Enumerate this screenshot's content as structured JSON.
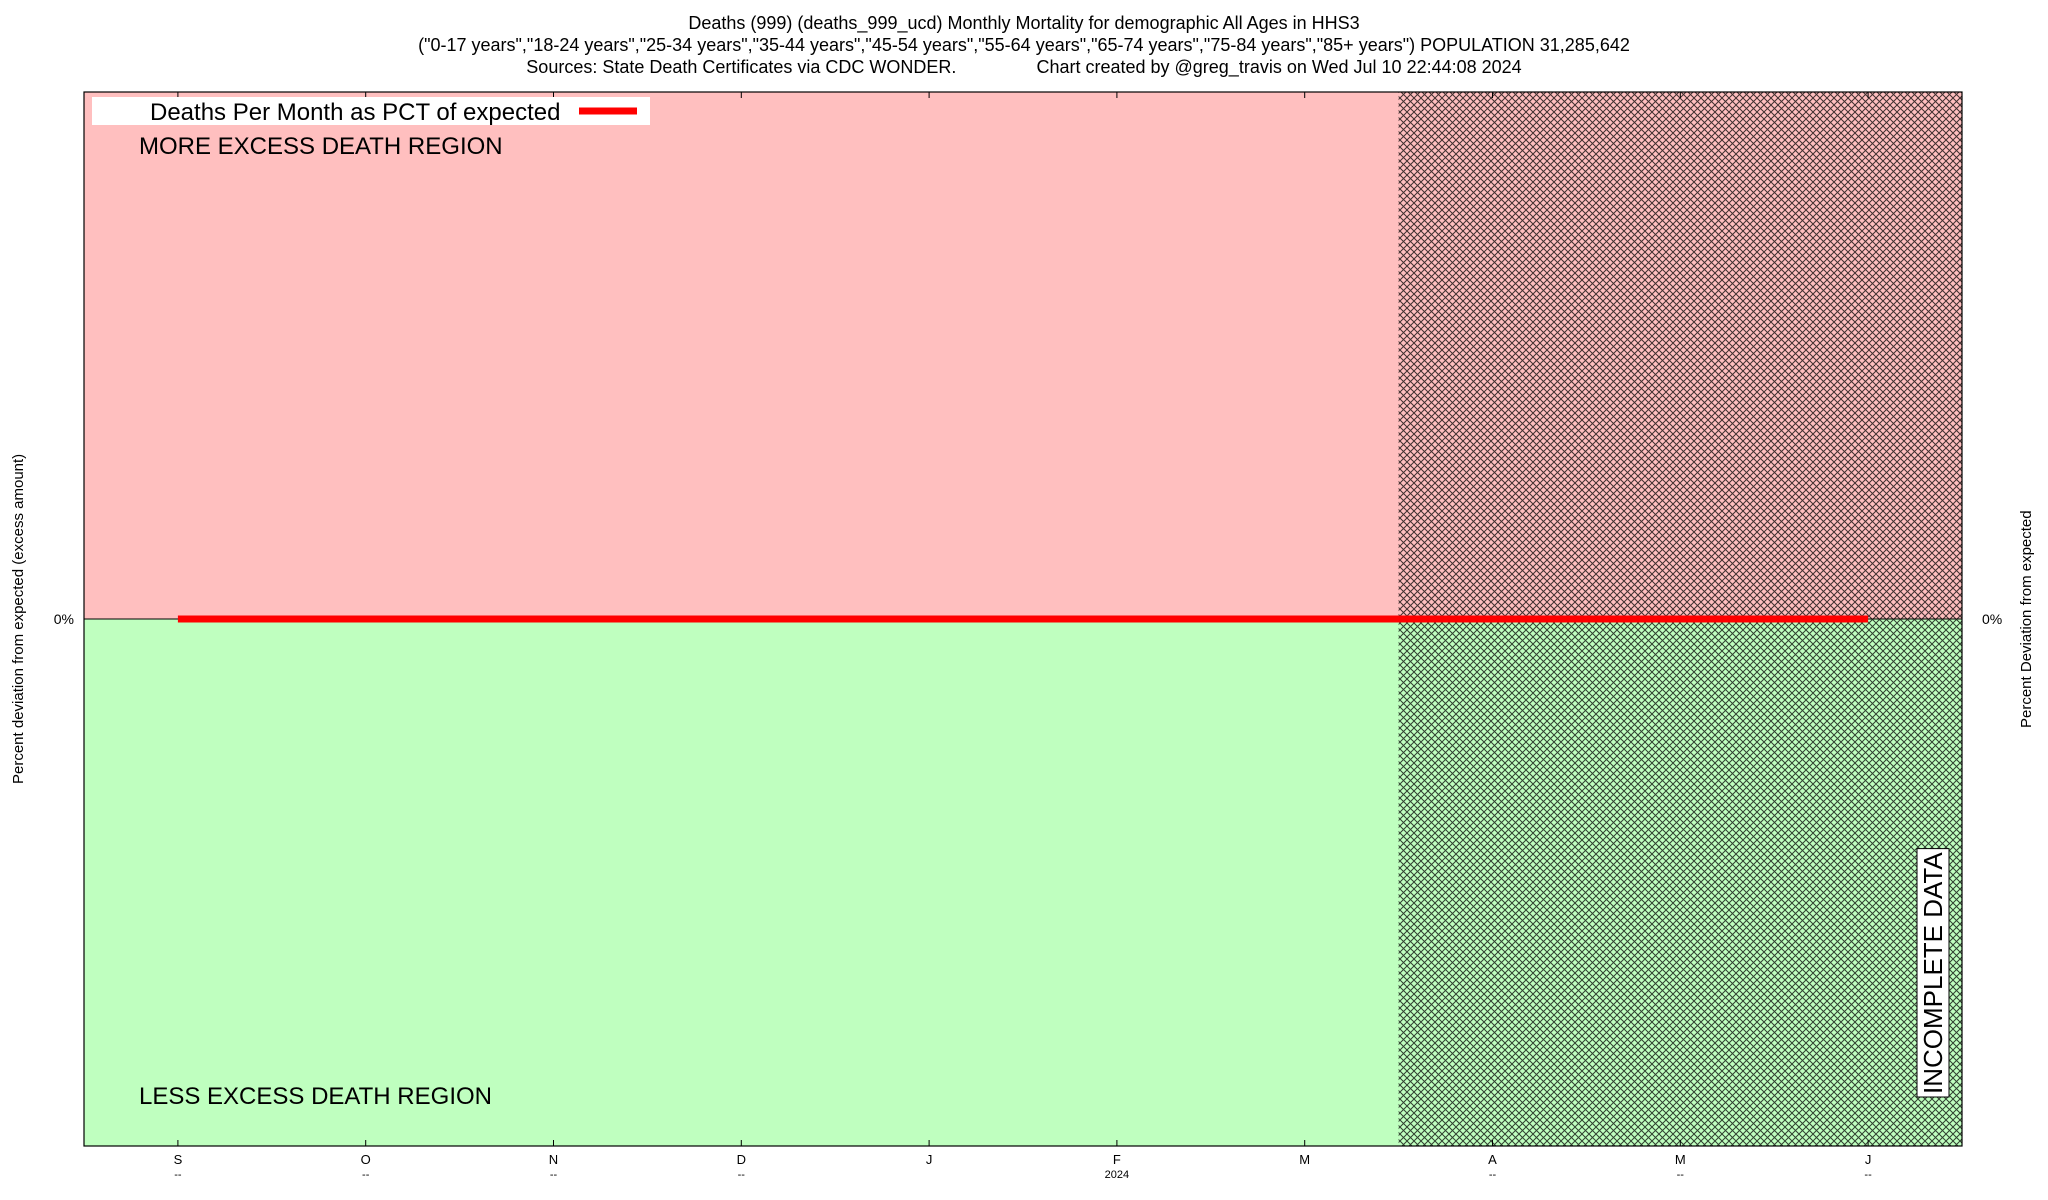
{
  "title_lines": [
    "Deaths (999) (deaths_999_ucd) Monthly Mortality for demographic All Ages in HHS3",
    "(\"0-17 years\",\"18-24 years\",\"25-34 years\",\"35-44 years\",\"45-54 years\",\"55-64 years\",\"65-74 years\",\"75-84 years\",\"85+ years\") POPULATION 31,285,642",
    "Sources: State Death Certificates via CDC WONDER.                Chart created by @greg_travis on Wed Jul 10 22:44:08 2024"
  ],
  "colors": {
    "excess_region": "#ffbfbf",
    "less_region": "#bfffbf",
    "series_line": "#ff0000",
    "hatch": "#000000"
  },
  "chart_data": {
    "type": "line",
    "ylabel_left": "Percent deviation from expected (excess amount)",
    "ylabel_right": "Percent Deviation from expected",
    "y_tick_left": "0%",
    "y_tick_right": "0%",
    "x_ticks": [
      {
        "label": "S",
        "sub": "--"
      },
      {
        "label": "O",
        "sub": "--"
      },
      {
        "label": "N",
        "sub": "--"
      },
      {
        "label": "D",
        "sub": "--"
      },
      {
        "label": "J",
        "sub": ""
      },
      {
        "label": "F",
        "sub": "2024"
      },
      {
        "label": "M",
        "sub": ""
      },
      {
        "label": "A",
        "sub": "--"
      },
      {
        "label": "M",
        "sub": "--"
      },
      {
        "label": "J",
        "sub": "--"
      }
    ],
    "x_range_months": [
      -0.5,
      9.5
    ],
    "incomplete_from_month": 7,
    "ylim": [
      -100,
      100
    ],
    "series": [
      {
        "name": "Deaths Per Month as PCT of expected",
        "x": [
          "S",
          "O",
          "N",
          "D",
          "J",
          "F",
          "M",
          "A",
          "M",
          "J"
        ],
        "values": [
          0,
          0,
          0,
          0,
          0,
          0,
          0,
          0,
          0,
          0
        ]
      }
    ],
    "legend_position": "top-left",
    "annotations": {
      "upper_region": "MORE EXCESS DEATH REGION",
      "lower_region": "LESS EXCESS DEATH REGION",
      "incomplete": "INCOMPLETE DATA"
    },
    "grid": false
  }
}
